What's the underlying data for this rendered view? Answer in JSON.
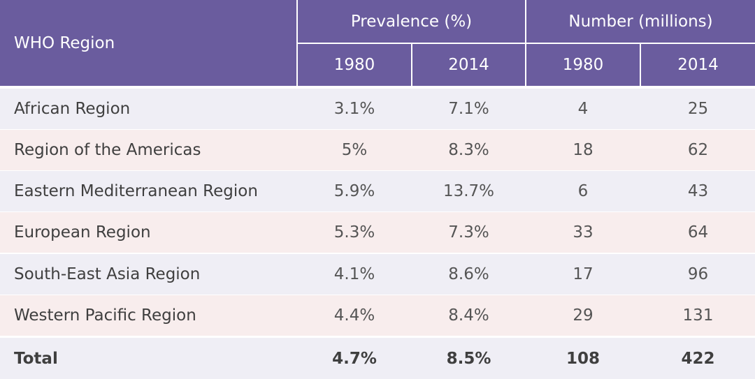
{
  "header": {
    "region_label": "WHO Region",
    "prevalence_label": "Prevalence (%)",
    "number_label": "Number (millions)",
    "years": [
      "1980",
      "2014",
      "1980",
      "2014"
    ]
  },
  "rows": [
    {
      "region": "African Region",
      "prev_1980": "3.1%",
      "prev_2014": "7.1%",
      "num_1980": "4",
      "num_2014": "25"
    },
    {
      "region": "Region of the Americas",
      "prev_1980": "5%",
      "prev_2014": "8.3%",
      "num_1980": "18",
      "num_2014": "62"
    },
    {
      "region": "Eastern Mediterranean Region",
      "prev_1980": "5.9%",
      "prev_2014": "13.7%",
      "num_1980": "6",
      "num_2014": "43"
    },
    {
      "region": "European Region",
      "prev_1980": "5.3%",
      "prev_2014": "7.3%",
      "num_1980": "33",
      "num_2014": "64"
    },
    {
      "region": "South-East Asia Region",
      "prev_1980": "4.1%",
      "prev_2014": "8.6%",
      "num_1980": "17",
      "num_2014": "96"
    },
    {
      "region": "Western Pacific Region",
      "prev_1980": "4.4%",
      "prev_2014": "8.4%",
      "num_1980": "29",
      "num_2014": "131"
    }
  ],
  "total": {
    "region": "Total",
    "prev_1980": "4.7%",
    "prev_2014": "8.5%",
    "num_1980": "108",
    "num_2014": "422"
  },
  "colors": {
    "header_bg": "#6a5c9e",
    "row_lavender": "#efeef5",
    "row_pink": "#f8eded"
  }
}
